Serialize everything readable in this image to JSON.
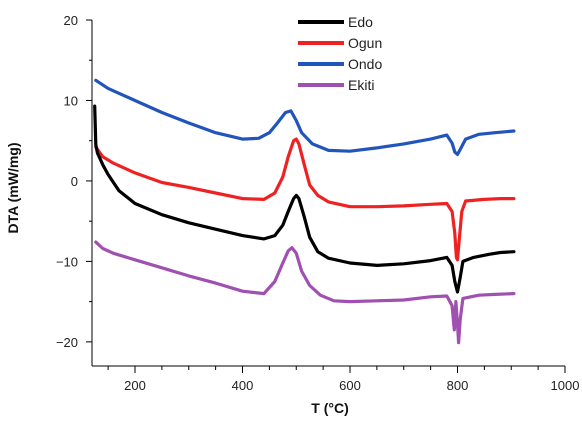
{
  "chart_data": {
    "type": "line",
    "title": "",
    "xlabel": "T (°C)",
    "ylabel": "DTA (mW/mg)",
    "xlim": [
      120,
      1000
    ],
    "ylim": [
      -23,
      20
    ],
    "x_ticks": [
      200,
      400,
      600,
      800,
      1000
    ],
    "y_ticks": [
      20,
      10,
      0,
      -10,
      -20
    ],
    "x_tick_labels": [
      "200",
      "400",
      "600",
      "800",
      "1000"
    ],
    "y_tick_labels": [
      "20",
      "10",
      "0",
      "−10",
      "−20"
    ],
    "grid": false,
    "legend_position": "top-center",
    "series": [
      {
        "name": "Edo",
        "color": "#000000",
        "points": [
          [
            125,
            9.3
          ],
          [
            127,
            4.5
          ],
          [
            130,
            3.5
          ],
          [
            140,
            2.0
          ],
          [
            150,
            0.8
          ],
          [
            170,
            -1.2
          ],
          [
            200,
            -2.8
          ],
          [
            250,
            -4.2
          ],
          [
            300,
            -5.2
          ],
          [
            350,
            -6.0
          ],
          [
            400,
            -6.8
          ],
          [
            440,
            -7.2
          ],
          [
            460,
            -6.8
          ],
          [
            475,
            -5.5
          ],
          [
            485,
            -3.8
          ],
          [
            495,
            -2.2
          ],
          [
            500,
            -1.8
          ],
          [
            505,
            -2.2
          ],
          [
            515,
            -4.5
          ],
          [
            525,
            -7.0
          ],
          [
            540,
            -8.8
          ],
          [
            560,
            -9.6
          ],
          [
            600,
            -10.2
          ],
          [
            650,
            -10.5
          ],
          [
            700,
            -10.3
          ],
          [
            750,
            -9.9
          ],
          [
            780,
            -9.5
          ],
          [
            790,
            -10.5
          ],
          [
            795,
            -12.5
          ],
          [
            800,
            -13.8
          ],
          [
            805,
            -12.0
          ],
          [
            810,
            -10.0
          ],
          [
            830,
            -9.5
          ],
          [
            860,
            -9.1
          ],
          [
            880,
            -8.9
          ],
          [
            905,
            -8.8
          ]
        ]
      },
      {
        "name": "Ogun",
        "color": "#ee2222",
        "points": [
          [
            127,
            4.2
          ],
          [
            140,
            3.0
          ],
          [
            160,
            2.2
          ],
          [
            200,
            1.0
          ],
          [
            250,
            -0.2
          ],
          [
            300,
            -0.8
          ],
          [
            350,
            -1.5
          ],
          [
            400,
            -2.2
          ],
          [
            440,
            -2.3
          ],
          [
            460,
            -1.5
          ],
          [
            475,
            0.5
          ],
          [
            485,
            3.0
          ],
          [
            495,
            5.0
          ],
          [
            500,
            5.2
          ],
          [
            505,
            4.6
          ],
          [
            515,
            2.0
          ],
          [
            525,
            -0.5
          ],
          [
            540,
            -1.8
          ],
          [
            560,
            -2.6
          ],
          [
            600,
            -3.2
          ],
          [
            650,
            -3.2
          ],
          [
            700,
            -3.1
          ],
          [
            750,
            -2.9
          ],
          [
            780,
            -2.8
          ],
          [
            790,
            -3.8
          ],
          [
            795,
            -6.5
          ],
          [
            798,
            -9.5
          ],
          [
            800,
            -9.8
          ],
          [
            803,
            -7.5
          ],
          [
            808,
            -3.8
          ],
          [
            815,
            -2.5
          ],
          [
            850,
            -2.3
          ],
          [
            880,
            -2.2
          ],
          [
            905,
            -2.2
          ]
        ]
      },
      {
        "name": "Ondo",
        "color": "#2255bb",
        "points": [
          [
            127,
            12.5
          ],
          [
            150,
            11.5
          ],
          [
            200,
            10.0
          ],
          [
            250,
            8.5
          ],
          [
            300,
            7.2
          ],
          [
            350,
            6.0
          ],
          [
            400,
            5.2
          ],
          [
            430,
            5.3
          ],
          [
            450,
            6.0
          ],
          [
            465,
            7.2
          ],
          [
            480,
            8.5
          ],
          [
            490,
            8.7
          ],
          [
            500,
            7.5
          ],
          [
            510,
            6.0
          ],
          [
            530,
            4.6
          ],
          [
            560,
            3.8
          ],
          [
            600,
            3.7
          ],
          [
            650,
            4.1
          ],
          [
            700,
            4.6
          ],
          [
            750,
            5.2
          ],
          [
            780,
            5.7
          ],
          [
            790,
            4.7
          ],
          [
            795,
            3.6
          ],
          [
            800,
            3.3
          ],
          [
            805,
            3.9
          ],
          [
            815,
            5.2
          ],
          [
            840,
            5.8
          ],
          [
            870,
            6.0
          ],
          [
            905,
            6.2
          ]
        ]
      },
      {
        "name": "Ekiti",
        "color": "#a050b0",
        "points": [
          [
            127,
            -7.6
          ],
          [
            140,
            -8.4
          ],
          [
            160,
            -9.0
          ],
          [
            200,
            -9.8
          ],
          [
            250,
            -10.8
          ],
          [
            300,
            -11.8
          ],
          [
            350,
            -12.7
          ],
          [
            400,
            -13.7
          ],
          [
            440,
            -14.0
          ],
          [
            460,
            -12.5
          ],
          [
            475,
            -10.2
          ],
          [
            485,
            -8.7
          ],
          [
            492,
            -8.3
          ],
          [
            500,
            -9.0
          ],
          [
            510,
            -11.2
          ],
          [
            525,
            -13.0
          ],
          [
            545,
            -14.2
          ],
          [
            570,
            -14.9
          ],
          [
            600,
            -15.0
          ],
          [
            650,
            -14.9
          ],
          [
            700,
            -14.8
          ],
          [
            750,
            -14.4
          ],
          [
            780,
            -14.3
          ],
          [
            790,
            -15.5
          ],
          [
            794,
            -18.5
          ],
          [
            797,
            -15.0
          ],
          [
            800,
            -17.8
          ],
          [
            802,
            -20.1
          ],
          [
            805,
            -17.2
          ],
          [
            810,
            -14.6
          ],
          [
            840,
            -14.2
          ],
          [
            870,
            -14.1
          ],
          [
            905,
            -14.0
          ]
        ]
      }
    ]
  }
}
